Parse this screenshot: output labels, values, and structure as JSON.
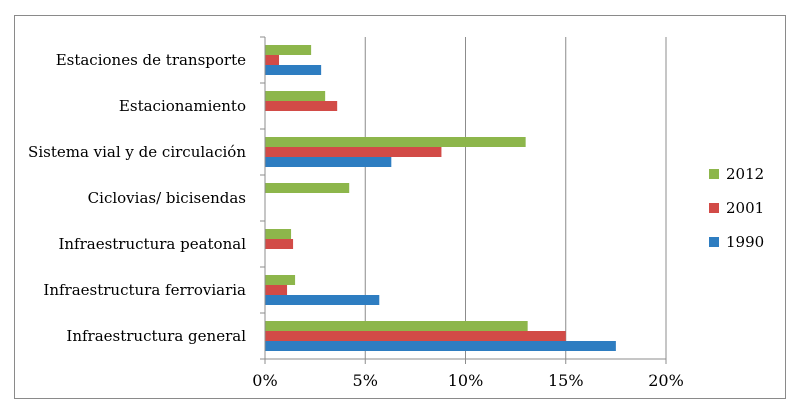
{
  "chart_data": {
    "type": "bar",
    "orientation": "horizontal",
    "categories": [
      "Estaciones de transporte",
      "Estacionamiento",
      "Sistema vial y de circulación",
      "Ciclovias/ bicisendas",
      "Infraestructura peatonal",
      "Infraestructura ferroviaria",
      "Infraestructura general"
    ],
    "series": [
      {
        "name": "2012",
        "color": "#8DB64B",
        "values": [
          2.3,
          3.0,
          13.0,
          4.2,
          1.3,
          1.5,
          13.1
        ]
      },
      {
        "name": "2001",
        "color": "#D24B47",
        "values": [
          0.7,
          3.6,
          8.8,
          0.0,
          1.4,
          1.1,
          15.0
        ]
      },
      {
        "name": "1990",
        "color": "#2E7DC1",
        "values": [
          2.8,
          0.0,
          6.3,
          0.0,
          0.0,
          5.7,
          17.5
        ]
      }
    ],
    "xlim": [
      0,
      20
    ],
    "xticks": [
      "0%",
      "5%",
      "10%",
      "15%",
      "20%"
    ],
    "legend_order": [
      "2012",
      "2001",
      "1990"
    ],
    "legend_position": "right",
    "grid": "vertical"
  }
}
